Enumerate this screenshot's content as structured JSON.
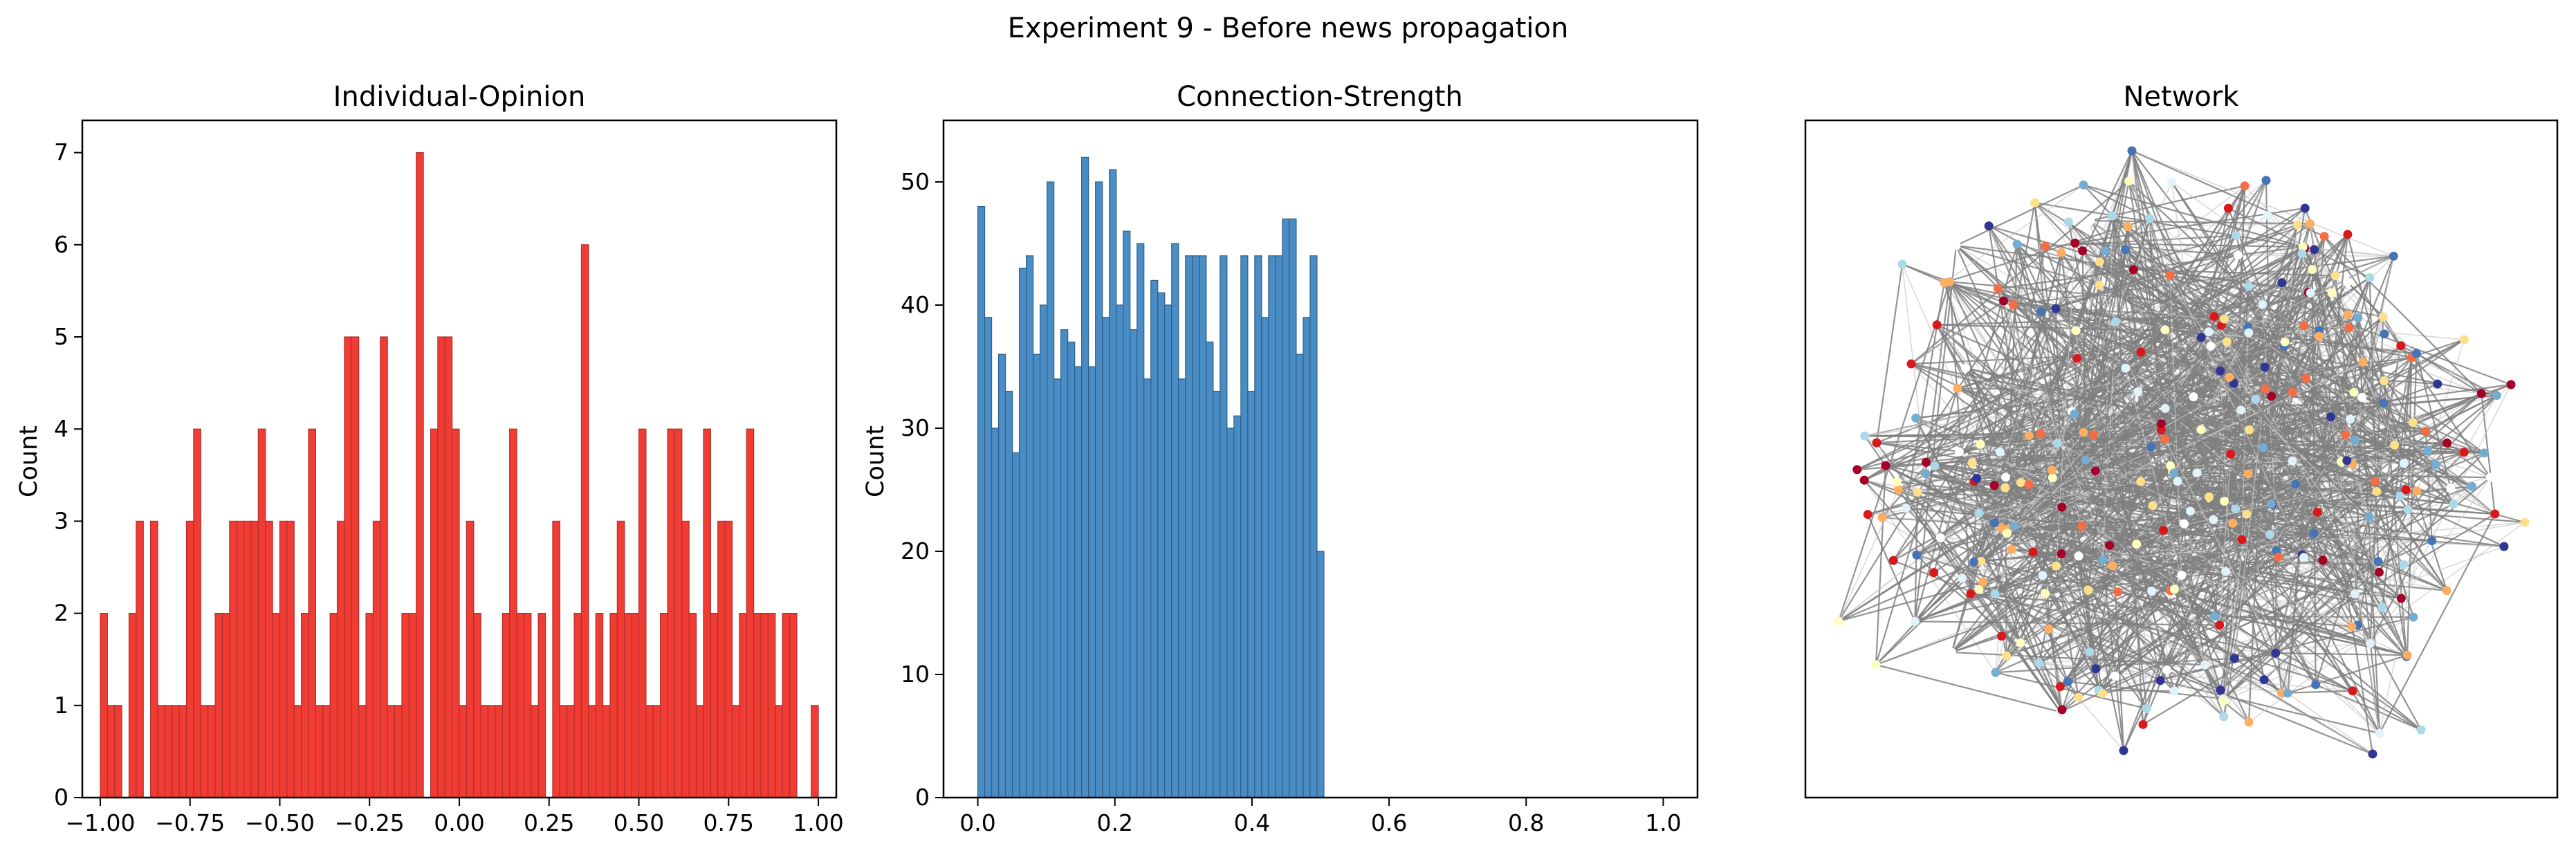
{
  "figure": {
    "title": "Experiment 9 - Before news propagation"
  },
  "chart_data": [
    {
      "type": "bar",
      "title": "Individual-Opinion",
      "xlabel": "",
      "ylabel": "Count",
      "xlim": [
        -1.05,
        1.05
      ],
      "ylim": [
        0,
        7.35
      ],
      "xticks": [
        -1.0,
        -0.75,
        -0.5,
        -0.25,
        0.0,
        0.25,
        0.5,
        0.75,
        1.0
      ],
      "xtick_labels": [
        "−1.00",
        "−0.75",
        "−0.50",
        "−0.25",
        "0.00",
        "0.25",
        "0.50",
        "0.75",
        "1.00"
      ],
      "yticks": [
        0,
        1,
        2,
        3,
        4,
        5,
        6,
        7
      ],
      "bin_range": [
        -1.0,
        1.0
      ],
      "bin_count": 100,
      "values": [
        2,
        1,
        1,
        0,
        2,
        3,
        0,
        3,
        1,
        1,
        1,
        1,
        3,
        4,
        1,
        1,
        2,
        2,
        3,
        3,
        3,
        3,
        4,
        3,
        2,
        3,
        3,
        1,
        2,
        4,
        1,
        1,
        2,
        3,
        5,
        5,
        1,
        2,
        3,
        5,
        1,
        1,
        2,
        2,
        7,
        0,
        4,
        5,
        5,
        4,
        1,
        3,
        2,
        1,
        1,
        1,
        2,
        4,
        2,
        2,
        1,
        2,
        0,
        3,
        1,
        1,
        2,
        6,
        1,
        2,
        1,
        2,
        3,
        2,
        2,
        4,
        1,
        1,
        2,
        4,
        4,
        3,
        2,
        1,
        4,
        2,
        3,
        3,
        1,
        2,
        4,
        2,
        2,
        2,
        1,
        2,
        2,
        0,
        0,
        1
      ],
      "color": "#f03c32",
      "edge_color": "#b03030",
      "grid": false
    },
    {
      "type": "bar",
      "title": "Connection-Strength",
      "xlabel": "",
      "ylabel": "Count",
      "xlim": [
        -0.05,
        1.05
      ],
      "ylim": [
        0,
        55
      ],
      "xticks": [
        0.0,
        0.2,
        0.4,
        0.6,
        0.8,
        1.0
      ],
      "xtick_labels": [
        "0.0",
        "0.2",
        "0.4",
        "0.6",
        "0.8",
        "1.0"
      ],
      "yticks": [
        0,
        10,
        20,
        30,
        40,
        50
      ],
      "bin_range": [
        0.0,
        0.505
      ],
      "bin_count": 50,
      "values": [
        48,
        39,
        30,
        36,
        33,
        28,
        43,
        44,
        36,
        40,
        50,
        34,
        38,
        37,
        35,
        52,
        35,
        50,
        39,
        51,
        40,
        46,
        38,
        45,
        34,
        42,
        41,
        40,
        45,
        34,
        44,
        44,
        44,
        37,
        33,
        44,
        30,
        31,
        44,
        33,
        44,
        39,
        44,
        44,
        47,
        47,
        36,
        39,
        44,
        20
      ],
      "color": "#4a8cc4",
      "edge_color": "#2e5f8a",
      "grid": false
    },
    {
      "type": "network",
      "title": "Network",
      "node_colors": [
        "#d7191c",
        "#f46d43",
        "#fdae61",
        "#fee08b",
        "#ffffbf",
        "#e0f3f8",
        "#abd9e9",
        "#74add1",
        "#4575b4",
        "#313695",
        "#a50026",
        "#ffffff"
      ],
      "edge_color": "#808080",
      "axes_visible": false
    }
  ]
}
